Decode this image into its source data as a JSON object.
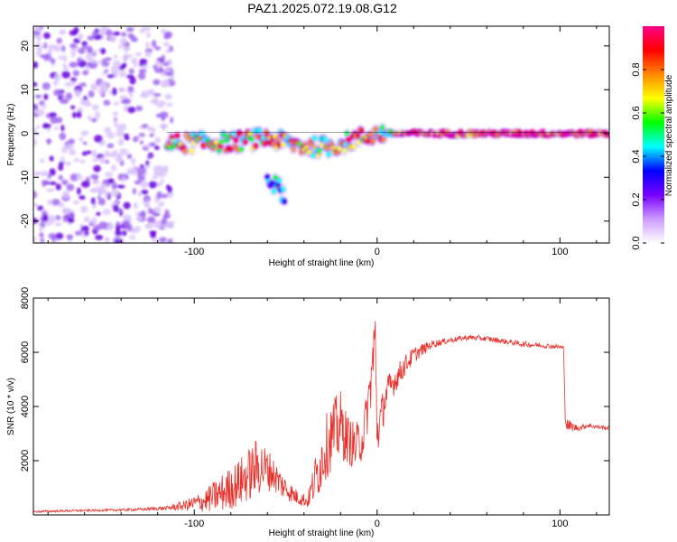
{
  "title": "PAZ1.2025.072.19.08.G12",
  "chart_data": [
    {
      "type": "heatmap",
      "xlabel": "Height of straight line (km)",
      "ylabel": "Frequency (Hz)",
      "xlim": [
        -188,
        127
      ],
      "ylim": [
        -25,
        24.5
      ],
      "x_ticks": [
        -100,
        0,
        100
      ],
      "y_ticks": [
        -20,
        -10,
        0,
        10,
        20
      ],
      "x_tick_labels": [
        "-100",
        "0",
        "100"
      ],
      "y_tick_labels": [
        "-20",
        "-10",
        "0",
        "10",
        "20"
      ],
      "colorbar": {
        "label": "Normalized spectral amplitude",
        "range": [
          0,
          1
        ],
        "ticks": [
          0.0,
          0.2,
          0.4,
          0.6,
          0.8
        ],
        "tick_labels": [
          "0.0",
          "0.2",
          "0.4",
          "0.6",
          "0.8"
        ],
        "colors": [
          "#ffffff",
          "#cc99ff",
          "#7700ff",
          "#0000ff",
          "#00ffff",
          "#00ff00",
          "#ffff00",
          "#ff8800",
          "#ff0000",
          "#ff0088"
        ]
      },
      "features": [
        {
          "name": "noise",
          "x_range": [
            -188,
            -112
          ],
          "f_range": [
            -25,
            24.5
          ],
          "amplitude": 0.1
        },
        {
          "name": "carrier",
          "points": [
            [
              -115,
              -2.5
            ],
            [
              -100,
              -2
            ],
            [
              -80,
              -2
            ],
            [
              -60,
              -1
            ],
            [
              -40,
              -3
            ],
            [
              -25,
              -3
            ],
            [
              -10,
              -1
            ],
            [
              0,
              0
            ],
            [
              15,
              0
            ],
            [
              60,
              0
            ],
            [
              127,
              0
            ]
          ],
          "amplitude": 0.9
        },
        {
          "name": "branch",
          "points": [
            [
              -60,
              -10
            ],
            [
              -50,
              -14
            ]
          ],
          "amplitude": 0.5
        }
      ]
    },
    {
      "type": "line",
      "xlabel": "Height of straight line (km)",
      "ylabel": "SNR (10 * v/v)",
      "xlim": [
        -188,
        127
      ],
      "ylim": [
        0,
        8000
      ],
      "x_ticks": [
        -100,
        0,
        100
      ],
      "y_ticks": [
        2000,
        4000,
        6000,
        8000
      ],
      "x_tick_labels": [
        "-100",
        "0",
        "100"
      ],
      "y_tick_labels": [
        "2000",
        "4000",
        "6000",
        "8000"
      ],
      "color": "#e8302a",
      "series": [
        {
          "x": [
            -188,
            -170,
            -150,
            -130,
            -115,
            -105,
            -95,
            -85,
            -75,
            -65,
            -58,
            -52,
            -45,
            -38,
            -33,
            -28,
            -24,
            -20,
            -16,
            -12,
            -8,
            -5,
            -3,
            -1,
            0,
            2,
            4,
            6,
            10,
            15,
            20,
            30,
            40,
            50,
            60,
            70,
            80,
            90,
            100,
            102,
            103,
            104,
            110,
            115,
            120,
            127
          ],
          "y": [
            120,
            150,
            170,
            200,
            250,
            350,
            500,
            800,
            1200,
            1800,
            1600,
            1100,
            700,
            500,
            1500,
            2500,
            3000,
            3300,
            2800,
            2500,
            2800,
            4000,
            5200,
            6500,
            3000,
            3500,
            4200,
            4600,
            5000,
            5500,
            5900,
            6300,
            6450,
            6550,
            6500,
            6400,
            6300,
            6250,
            6200,
            6150,
            3400,
            3300,
            3200,
            3300,
            3250,
            3200
          ],
          "amp": [
            40,
            40,
            40,
            50,
            80,
            200,
            400,
            700,
            900,
            1100,
            700,
            500,
            300,
            250,
            1000,
            1200,
            1300,
            1300,
            900,
            900,
            800,
            900,
            1200,
            1500,
            900,
            800,
            700,
            600,
            500,
            400,
            300,
            150,
            100,
            100,
            100,
            100,
            100,
            90,
            90,
            90,
            100,
            250,
            100,
            80,
            80,
            80
          ]
        }
      ]
    }
  ]
}
